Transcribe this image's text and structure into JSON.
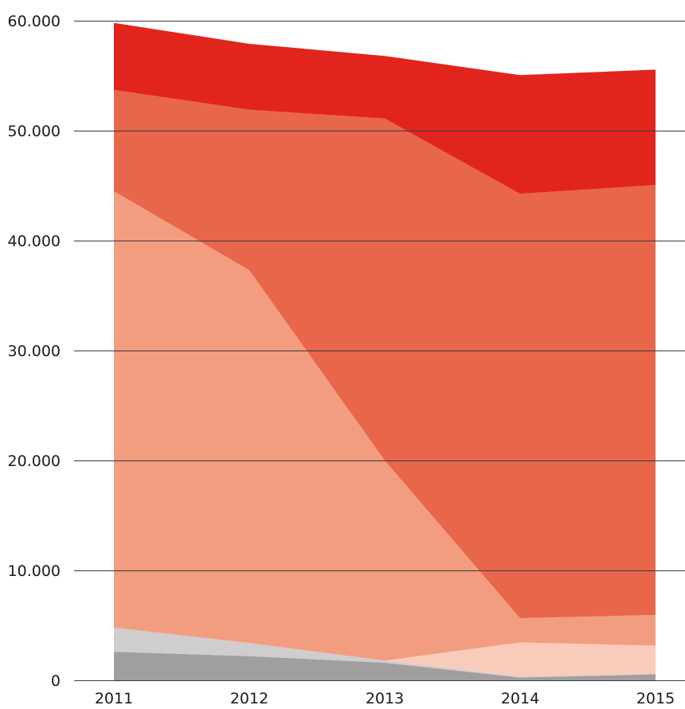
{
  "chart_data": {
    "type": "area",
    "stacked": true,
    "categories": [
      "2011",
      "2012",
      "2013",
      "2014",
      "2015"
    ],
    "ylim": [
      0,
      60000
    ],
    "y_ticks": [
      0,
      10000,
      20000,
      30000,
      40000,
      50000,
      60000
    ],
    "y_tick_labels": [
      "0",
      "10.000",
      "20.000",
      "30.000",
      "40.000",
      "50.000",
      "60.000"
    ],
    "grid": "horizontal",
    "legend": "none",
    "series": [
      {
        "color": "#a09e9f",
        "values": [
          2600,
          2200,
          1600,
          250,
          550
        ]
      },
      {
        "color": "#cfcdce",
        "values": [
          2200,
          1200,
          200,
          100,
          0
        ]
      },
      {
        "color": "#f8cbbb",
        "values": [
          0,
          0,
          0,
          3100,
          2600
        ]
      },
      {
        "color": "#f29d80",
        "values": [
          39700,
          33900,
          18200,
          2200,
          2800
        ]
      },
      {
        "color": "#e8664a",
        "values": [
          9200,
          14600,
          31100,
          38600,
          39100
        ]
      },
      {
        "color": "#e1251d",
        "values": [
          6100,
          6000,
          5700,
          10800,
          10500
        ]
      }
    ]
  }
}
